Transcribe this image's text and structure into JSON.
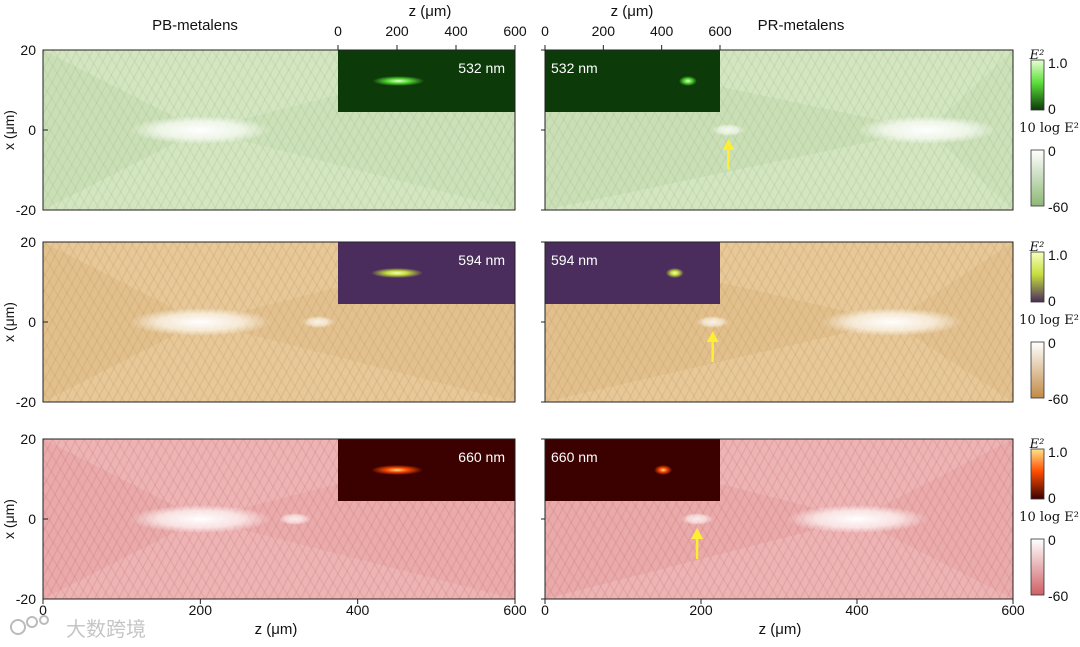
{
  "figure": {
    "left_title": "PB-metalens",
    "right_title": "PR-metalens",
    "top_axis_label": "z (μm)",
    "bottom_axis_label": "z (μm)",
    "y_axis_label": "x (μm)",
    "watermark": "大数跨境"
  },
  "chart_data": {
    "type": "heatmap",
    "description_axes": {
      "z_range": [
        0,
        600
      ],
      "x_range": [
        -20,
        20
      ],
      "z_ticks": [
        "0",
        "200",
        "400",
        "600"
      ],
      "x_ticks": [
        "20",
        "0",
        "-20"
      ],
      "inset_z_range": [
        0,
        600
      ],
      "inset_z_ticks": [
        "0",
        "200",
        "400",
        "600"
      ]
    },
    "wavelengths": [
      "532 nm",
      "594 nm",
      "660 nm"
    ],
    "colorbar_linear": {
      "label": "E²",
      "ticks": [
        "1.0",
        "0"
      ]
    },
    "colorbar_log": {
      "label": "10 log E²",
      "ticks": [
        "0",
        "-60"
      ]
    },
    "rows": [
      {
        "wavelength": "532 nm",
        "theme": {
          "base": "#d4e5c1",
          "dark": "#8db875",
          "light": "#f7fbf3",
          "inset_bg": "#0c3a09",
          "inset_hot": "#5ce03a",
          "inset_core": "#e9ffd5"
        },
        "pb": {
          "main_focus_z": 200,
          "inset_focus_z": 205
        },
        "pr": {
          "main_focus_z": 490,
          "inset_focus_z": 490,
          "secondary_focus_z": 235
        }
      },
      {
        "wavelength": "594 nm",
        "theme": {
          "base": "#e6c899",
          "dark": "#c08a45",
          "light": "#fbf3e6",
          "inset_bg": "#4a2d5c",
          "inset_hot": "#c6de3c",
          "inset_core": "#f6ffc0"
        },
        "pb": {
          "main_focus_z": 200,
          "inset_focus_z": 200,
          "secondary_focus_z": 350
        },
        "pr": {
          "main_focus_z": 445,
          "inset_focus_z": 445,
          "secondary_focus_z": 215
        }
      },
      {
        "wavelength": "660 nm",
        "theme": {
          "base": "#ecb4b4",
          "dark": "#cf5f65",
          "light": "#fdf0f0",
          "inset_bg": "#3b0000",
          "inset_hot": "#ff4c00",
          "inset_core": "#ffe48a"
        },
        "pb": {
          "main_focus_z": 200,
          "inset_focus_z": 200,
          "secondary_focus_z": 320
        },
        "pr": {
          "main_focus_z": 400,
          "inset_focus_z": 405,
          "secondary_focus_z": 195
        }
      }
    ]
  }
}
